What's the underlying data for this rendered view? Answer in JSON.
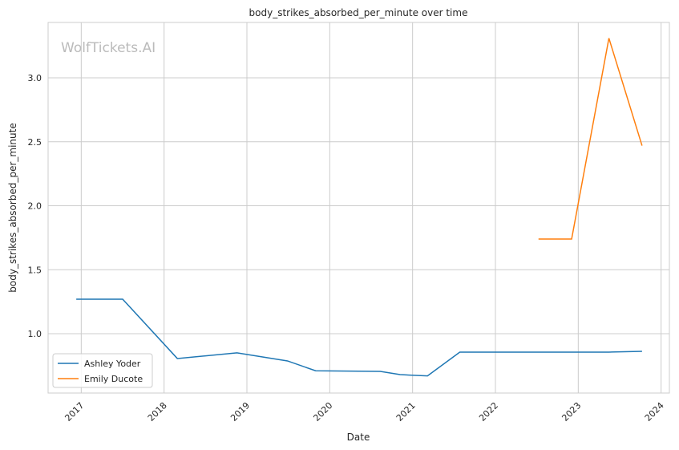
{
  "chart_data": {
    "type": "line",
    "title": "body_strikes_absorbed_per_minute over time",
    "xlabel": "Date",
    "ylabel": "body_strikes_absorbed_per_minute",
    "watermark": "WolfTickets.AI",
    "xlim": [
      2016.6,
      2024.1
    ],
    "ylim": [
      0.536,
      3.433
    ],
    "xticks": [
      "2017",
      "2018",
      "2019",
      "2020",
      "2021",
      "2022",
      "2023",
      "2024"
    ],
    "yticks": [
      "1.0",
      "1.5",
      "2.0",
      "2.5",
      "3.0"
    ],
    "grid": true,
    "legend_placement": "lower-left",
    "series": [
      {
        "name": "Ashley Yoder",
        "color": "#1f77b4",
        "x": [
          2016.94,
          2017.5,
          2018.16,
          2018.88,
          2019.49,
          2019.83,
          2020.61,
          2020.85,
          2021.18,
          2021.57,
          2023.37,
          2023.77
        ],
        "y": [
          1.27,
          1.27,
          0.806,
          0.85,
          0.787,
          0.71,
          0.705,
          0.68,
          0.67,
          0.856,
          0.856,
          0.862
        ]
      },
      {
        "name": "Emily Ducote",
        "color": "#ff7f0e",
        "x": [
          2022.52,
          2022.92,
          2023.37,
          2023.77
        ],
        "y": [
          1.74,
          1.74,
          3.31,
          2.47
        ]
      }
    ]
  }
}
